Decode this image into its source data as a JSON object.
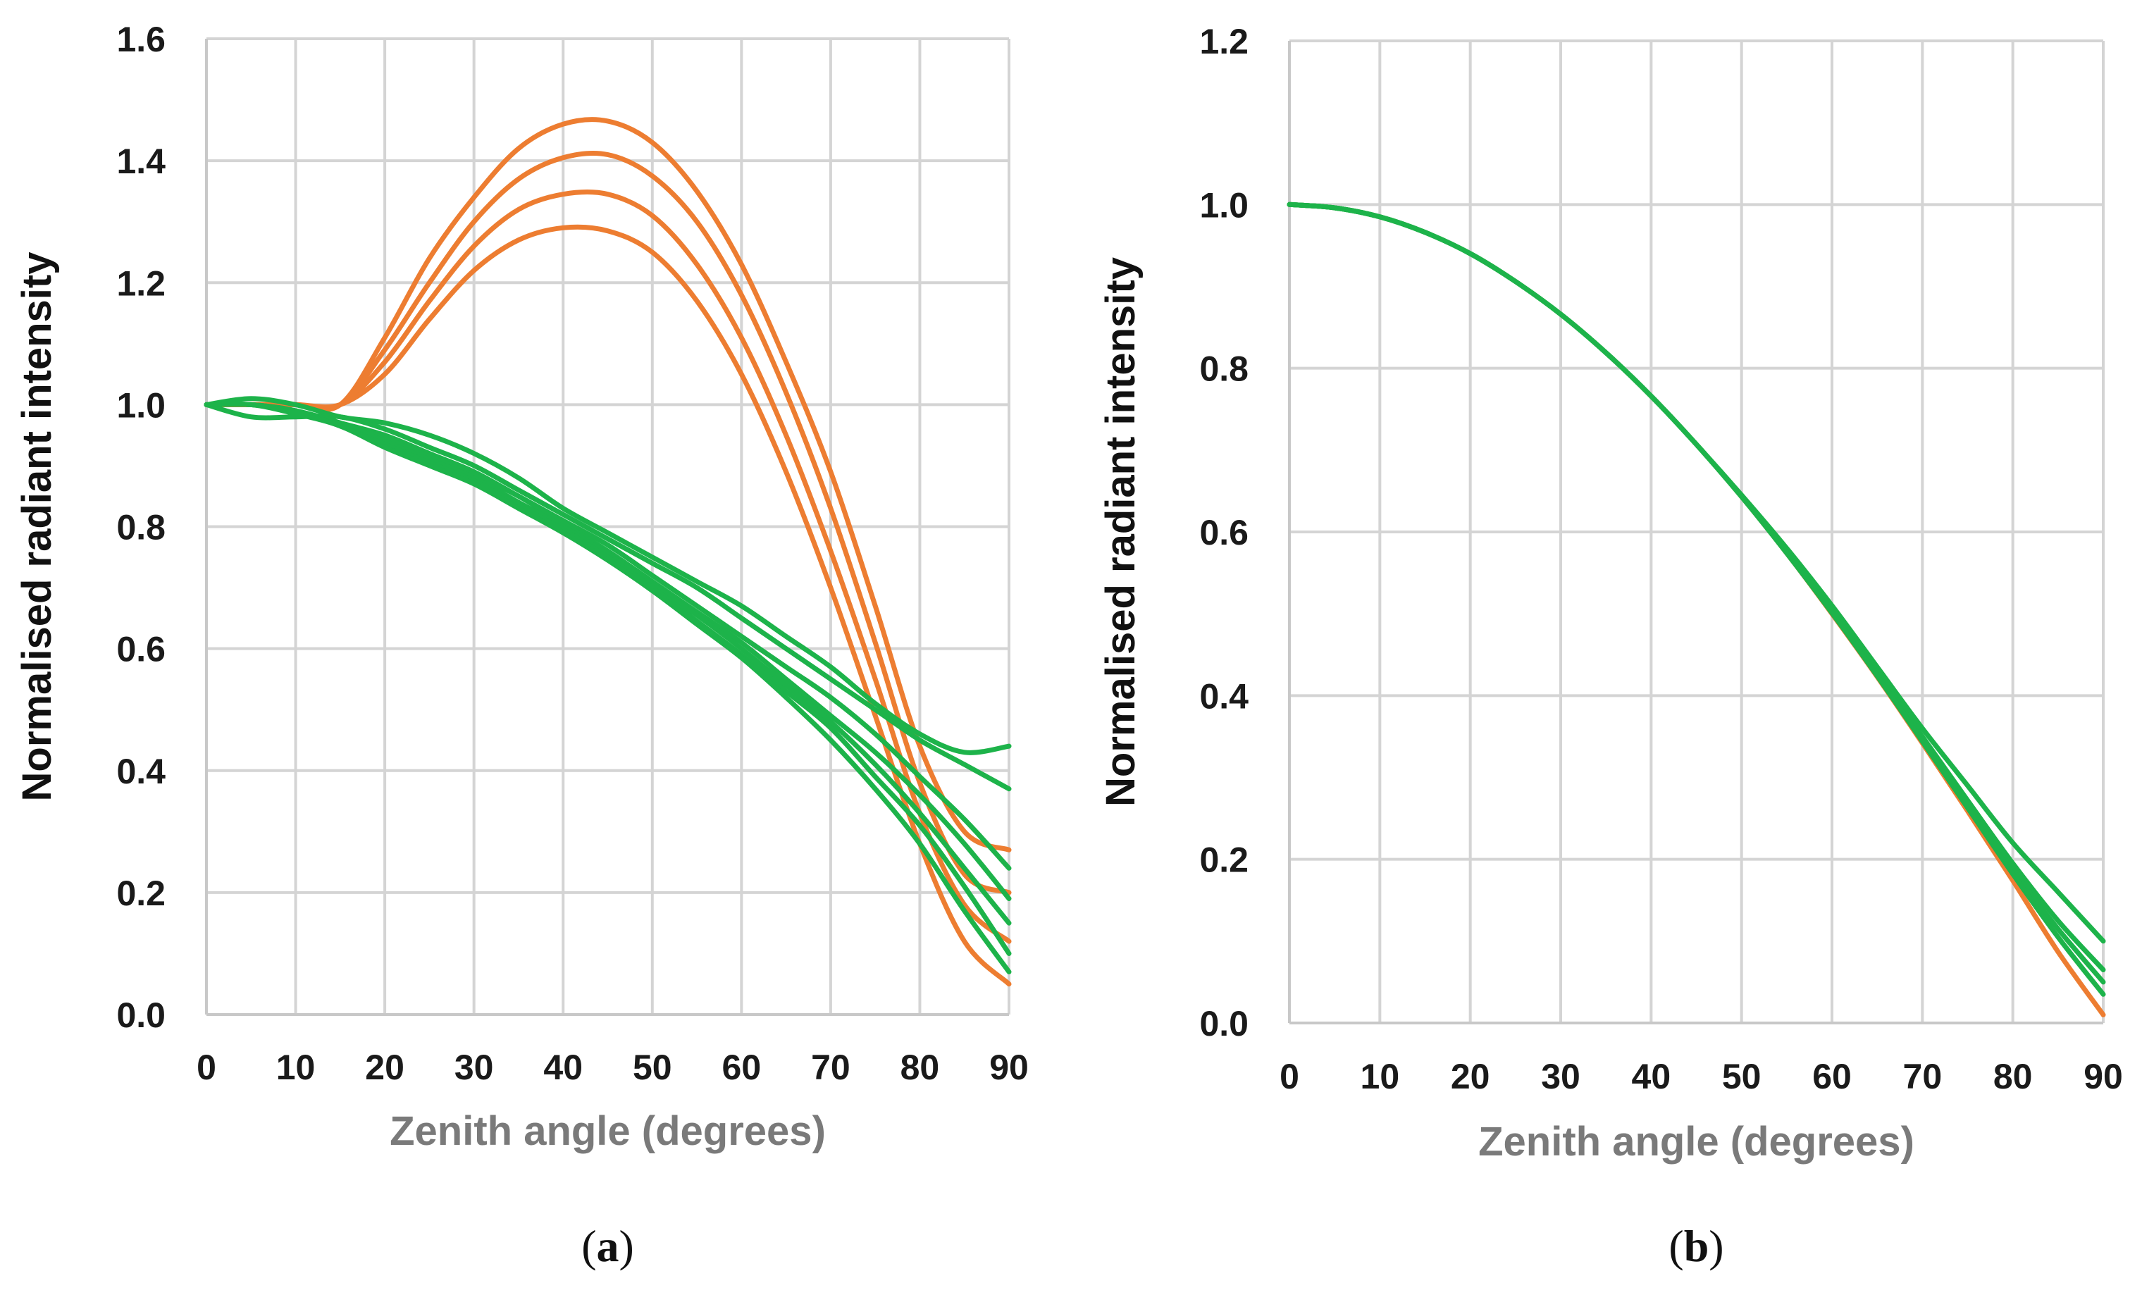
{
  "chart_data": [
    {
      "type": "line",
      "panel_label": "a",
      "xlabel": "Zenith angle (degrees)",
      "ylabel": "Normalised radiant intensity",
      "xlim": [
        0,
        90
      ],
      "ylim": [
        0,
        1.6
      ],
      "xticks": [
        0,
        10,
        20,
        30,
        40,
        50,
        60,
        70,
        80,
        90
      ],
      "yticks": [
        "0.0",
        "0.2",
        "0.4",
        "0.6",
        "0.8",
        "1.0",
        "1.2",
        "1.4",
        "1.6"
      ],
      "grid": true,
      "colors": {
        "orange": "#ED7D31",
        "green": "#1DB34A"
      },
      "x": [
        0,
        5,
        10,
        15,
        20,
        25,
        30,
        35,
        40,
        45,
        50,
        55,
        60,
        65,
        70,
        75,
        80,
        85,
        90
      ],
      "series": [
        {
          "name": "orange-1",
          "color": "orange",
          "values": [
            1.0,
            1.0,
            1.0,
            1.0,
            1.11,
            1.24,
            1.34,
            1.42,
            1.46,
            1.465,
            1.43,
            1.35,
            1.23,
            1.07,
            0.89,
            0.67,
            0.44,
            0.3,
            0.27
          ]
        },
        {
          "name": "orange-2",
          "color": "orange",
          "values": [
            1.0,
            1.0,
            1.0,
            1.0,
            1.09,
            1.2,
            1.3,
            1.37,
            1.405,
            1.41,
            1.375,
            1.3,
            1.18,
            1.02,
            0.83,
            0.61,
            0.38,
            0.23,
            0.2
          ]
        },
        {
          "name": "orange-3",
          "color": "orange",
          "values": [
            1.0,
            1.0,
            1.0,
            1.0,
            1.07,
            1.17,
            1.26,
            1.32,
            1.345,
            1.345,
            1.31,
            1.23,
            1.11,
            0.95,
            0.76,
            0.55,
            0.33,
            0.18,
            0.12
          ]
        },
        {
          "name": "orange-4",
          "color": "orange",
          "values": [
            1.0,
            1.0,
            1.0,
            1.0,
            1.05,
            1.14,
            1.22,
            1.27,
            1.29,
            1.285,
            1.25,
            1.17,
            1.05,
            0.89,
            0.7,
            0.49,
            0.28,
            0.12,
            0.05
          ]
        },
        {
          "name": "green-1",
          "color": "green",
          "values": [
            1.0,
            1.01,
            1.0,
            0.98,
            0.97,
            0.95,
            0.92,
            0.88,
            0.83,
            0.79,
            0.75,
            0.71,
            0.67,
            0.62,
            0.57,
            0.51,
            0.46,
            0.43,
            0.44
          ]
        },
        {
          "name": "green-2",
          "color": "green",
          "values": [
            1.0,
            0.98,
            0.98,
            0.98,
            0.96,
            0.93,
            0.9,
            0.86,
            0.82,
            0.78,
            0.74,
            0.7,
            0.65,
            0.6,
            0.55,
            0.5,
            0.45,
            0.41,
            0.37
          ]
        },
        {
          "name": "green-3",
          "color": "green",
          "values": [
            1.0,
            1.0,
            0.99,
            0.97,
            0.95,
            0.92,
            0.89,
            0.85,
            0.81,
            0.77,
            0.72,
            0.67,
            0.62,
            0.57,
            0.52,
            0.46,
            0.39,
            0.32,
            0.24
          ]
        },
        {
          "name": "green-4",
          "color": "green",
          "values": [
            1.0,
            1.0,
            0.99,
            0.97,
            0.945,
            0.915,
            0.885,
            0.85,
            0.805,
            0.76,
            0.71,
            0.66,
            0.61,
            0.55,
            0.49,
            0.43,
            0.36,
            0.28,
            0.19
          ]
        },
        {
          "name": "green-5",
          "color": "green",
          "values": [
            1.0,
            1.0,
            0.99,
            0.97,
            0.94,
            0.91,
            0.88,
            0.84,
            0.8,
            0.755,
            0.705,
            0.655,
            0.6,
            0.54,
            0.48,
            0.41,
            0.33,
            0.24,
            0.15
          ]
        },
        {
          "name": "green-6",
          "color": "green",
          "values": [
            1.0,
            1.0,
            0.99,
            0.965,
            0.935,
            0.905,
            0.875,
            0.835,
            0.795,
            0.75,
            0.7,
            0.645,
            0.59,
            0.53,
            0.47,
            0.39,
            0.31,
            0.21,
            0.1
          ]
        },
        {
          "name": "green-7",
          "color": "green",
          "values": [
            1.0,
            1.0,
            0.985,
            0.965,
            0.93,
            0.9,
            0.87,
            0.83,
            0.79,
            0.745,
            0.695,
            0.64,
            0.585,
            0.52,
            0.45,
            0.37,
            0.28,
            0.17,
            0.07
          ]
        }
      ]
    },
    {
      "type": "line",
      "panel_label": "b",
      "xlabel": "Zenith angle (degrees)",
      "ylabel": "Normalised radiant intensity",
      "xlim": [
        0,
        90
      ],
      "ylim": [
        0,
        1.2
      ],
      "xticks": [
        0,
        10,
        20,
        30,
        40,
        50,
        60,
        70,
        80,
        90
      ],
      "yticks": [
        "0.0",
        "0.2",
        "0.4",
        "0.6",
        "0.8",
        "1.0",
        "1.2"
      ],
      "grid": true,
      "colors": {
        "orange": "#ED7D31",
        "green": "#1DB34A"
      },
      "x": [
        0,
        5,
        10,
        15,
        20,
        25,
        30,
        35,
        40,
        45,
        50,
        55,
        60,
        65,
        70,
        75,
        80,
        85,
        90
      ],
      "series": [
        {
          "name": "orange-1",
          "color": "orange",
          "values": [
            1.0,
            0.996,
            0.985,
            0.966,
            0.94,
            0.906,
            0.866,
            0.819,
            0.766,
            0.707,
            0.643,
            0.574,
            0.5,
            0.423,
            0.342,
            0.259,
            0.174,
            0.087,
            0.01
          ]
        },
        {
          "name": "green-1",
          "color": "green",
          "values": [
            1.0,
            0.996,
            0.985,
            0.966,
            0.94,
            0.906,
            0.866,
            0.819,
            0.766,
            0.707,
            0.645,
            0.58,
            0.51,
            0.435,
            0.36,
            0.29,
            0.22,
            0.16,
            0.1
          ]
        },
        {
          "name": "green-2",
          "color": "green",
          "values": [
            1.0,
            0.996,
            0.985,
            0.966,
            0.94,
            0.906,
            0.866,
            0.819,
            0.766,
            0.707,
            0.644,
            0.577,
            0.505,
            0.428,
            0.35,
            0.272,
            0.195,
            0.125,
            0.065
          ]
        },
        {
          "name": "green-3",
          "color": "green",
          "values": [
            1.0,
            0.996,
            0.985,
            0.966,
            0.94,
            0.906,
            0.866,
            0.819,
            0.766,
            0.707,
            0.643,
            0.575,
            0.502,
            0.425,
            0.346,
            0.266,
            0.187,
            0.115,
            0.05
          ]
        },
        {
          "name": "green-4",
          "color": "green",
          "values": [
            1.0,
            0.996,
            0.985,
            0.966,
            0.94,
            0.906,
            0.866,
            0.819,
            0.766,
            0.707,
            0.643,
            0.574,
            0.501,
            0.424,
            0.344,
            0.263,
            0.182,
            0.105,
            0.035
          ]
        }
      ]
    }
  ]
}
